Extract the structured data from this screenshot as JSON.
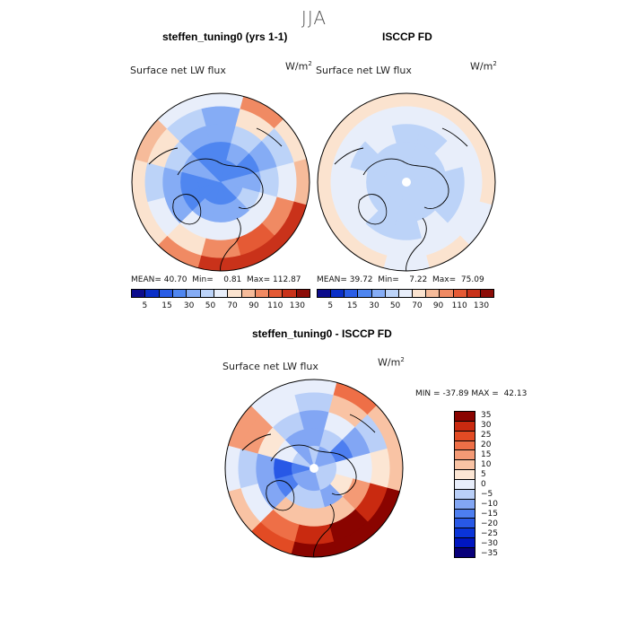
{
  "figure": {
    "season": "JJA",
    "units_base": "W/m",
    "units_exp": "2"
  },
  "colors": {
    "abs_scale": [
      "#0c0c8c",
      "#0a2fc8",
      "#2a5de6",
      "#4f86f0",
      "#85acf5",
      "#bcd3f8",
      "#e8eefa",
      "#fbe3cf",
      "#f6bb9a",
      "#f08a63",
      "#e55a35",
      "#c9321a",
      "#8c0d08"
    ],
    "diff_scale": [
      "#08007a",
      "#0016c0",
      "#0a34d8",
      "#2858e6",
      "#4d7ef0",
      "#82a6f4",
      "#b9cff8",
      "#e8eefb",
      "#fce6d4",
      "#f9c3a4",
      "#f49a75",
      "#ee6f47",
      "#e24b24",
      "#c92a10",
      "#8a0400"
    ],
    "land_outline": "#000000"
  },
  "panels": [
    {
      "title": "steffen_tuning0 (yrs 1-1)",
      "varname": "Surface net LW flux",
      "mean_label": "MEAN=",
      "mean": "40.70",
      "min_label": "Min=",
      "min": "0.81",
      "max_label": "Max=",
      "max": "112.87"
    },
    {
      "title": "ISCCP FD",
      "varname": "Surface net LW flux",
      "mean_label": "MEAN=",
      "mean": "39.72",
      "min_label": "Min=",
      "min": "7.22",
      "max_label": "Max=",
      "max": "75.09"
    },
    {
      "title": "steffen_tuning0 - ISCCP FD",
      "varname": "Surface net LW flux",
      "min_label": "MIN =",
      "min": "-37.89",
      "max_label": "MAX =",
      "max": "42.13"
    }
  ],
  "colorbars": {
    "abs_ticks": [
      "5",
      "15",
      "30",
      "50",
      "70",
      "90",
      "110",
      "130"
    ],
    "diff_ticks": [
      "35",
      "30",
      "25",
      "20",
      "15",
      "10",
      "5",
      "0",
      "−5",
      "−10",
      "−15",
      "−20",
      "−25",
      "−30",
      "−35"
    ]
  },
  "chart_data": [
    {
      "type": "heatmap",
      "projection": "north-polar-stereographic",
      "title": "steffen_tuning0 (yrs 1-1)",
      "variable": "Surface net LW flux",
      "units": "W/m^2",
      "levels": [
        5,
        15,
        30,
        50,
        70,
        90,
        110,
        130
      ],
      "stats": {
        "mean": 40.7,
        "min": 0.81,
        "max": 112.87
      },
      "sectors_deg": [
        0,
        30,
        60,
        90,
        120,
        150,
        180,
        210,
        240,
        270,
        300,
        330
      ],
      "rings_rel": [
        0.15,
        0.35,
        0.55,
        0.75,
        0.95
      ],
      "values": [
        [
          15,
          15,
          20,
          25,
          40
        ],
        [
          15,
          20,
          30,
          50,
          75
        ],
        [
          15,
          15,
          20,
          30,
          55
        ],
        [
          20,
          25,
          30,
          40,
          60
        ],
        [
          20,
          30,
          45,
          70,
          95
        ],
        [
          15,
          20,
          45,
          80,
          105
        ],
        [
          15,
          20,
          45,
          70,
          90
        ],
        [
          15,
          20,
          40,
          55,
          70
        ],
        [
          15,
          15,
          25,
          40,
          55
        ],
        [
          15,
          15,
          25,
          35,
          50
        ],
        [
          20,
          25,
          35,
          50,
          60
        ],
        [
          15,
          15,
          20,
          30,
          45
        ]
      ]
    },
    {
      "type": "heatmap",
      "projection": "north-polar-stereographic",
      "title": "ISCCP FD",
      "variable": "Surface net LW flux",
      "units": "W/m^2",
      "levels": [
        5,
        15,
        30,
        50,
        70,
        90,
        110,
        130
      ],
      "stats": {
        "mean": 39.72,
        "min": 7.22,
        "max": 75.09
      },
      "sectors_deg": [
        0,
        30,
        60,
        90,
        120,
        150,
        180,
        210,
        240,
        270,
        300,
        330
      ],
      "rings_rel": [
        0.15,
        0.35,
        0.55,
        0.75,
        0.95
      ],
      "values": [
        [
          30,
          30,
          35,
          45,
          50
        ],
        [
          30,
          30,
          35,
          45,
          55
        ],
        [
          30,
          35,
          40,
          45,
          50
        ],
        [
          30,
          30,
          35,
          45,
          55
        ],
        [
          30,
          30,
          35,
          40,
          45
        ],
        [
          30,
          35,
          40,
          45,
          50
        ],
        [
          30,
          30,
          35,
          40,
          45
        ],
        [
          30,
          30,
          35,
          45,
          55
        ],
        [
          30,
          30,
          40,
          45,
          50
        ],
        [
          30,
          35,
          40,
          45,
          55
        ],
        [
          30,
          30,
          35,
          40,
          50
        ],
        [
          30,
          35,
          40,
          45,
          50
        ]
      ]
    },
    {
      "type": "heatmap",
      "projection": "north-polar-stereographic",
      "title": "steffen_tuning0 - ISCCP FD",
      "variable": "Surface net LW flux",
      "units": "W/m^2",
      "levels": [
        -35,
        -30,
        -25,
        -20,
        -15,
        -10,
        -5,
        0,
        5,
        10,
        15,
        20,
        25,
        30,
        35
      ],
      "stats": {
        "min": -37.89,
        "max": 42.13
      },
      "sectors_deg": [
        0,
        30,
        60,
        90,
        120,
        150,
        180,
        210,
        240,
        270,
        300,
        330
      ],
      "rings_rel": [
        0.15,
        0.35,
        0.55,
        0.75,
        0.95
      ],
      "values": [
        [
          -10,
          -15,
          -15,
          -10,
          -5
        ],
        [
          -15,
          -10,
          -5,
          5,
          15
        ],
        [
          -15,
          -20,
          -15,
          -10,
          5
        ],
        [
          -10,
          -5,
          -5,
          0,
          5
        ],
        [
          -10,
          0,
          10,
          25,
          35
        ],
        [
          -10,
          -15,
          5,
          30,
          40
        ],
        [
          -15,
          -10,
          5,
          25,
          35
        ],
        [
          -15,
          -10,
          5,
          15,
          20
        ],
        [
          -15,
          -20,
          -15,
          -5,
          5
        ],
        [
          -20,
          -25,
          -15,
          -10,
          -5
        ],
        [
          -10,
          -5,
          0,
          10,
          10
        ],
        [
          -15,
          -15,
          -10,
          -5,
          -5
        ]
      ]
    }
  ]
}
